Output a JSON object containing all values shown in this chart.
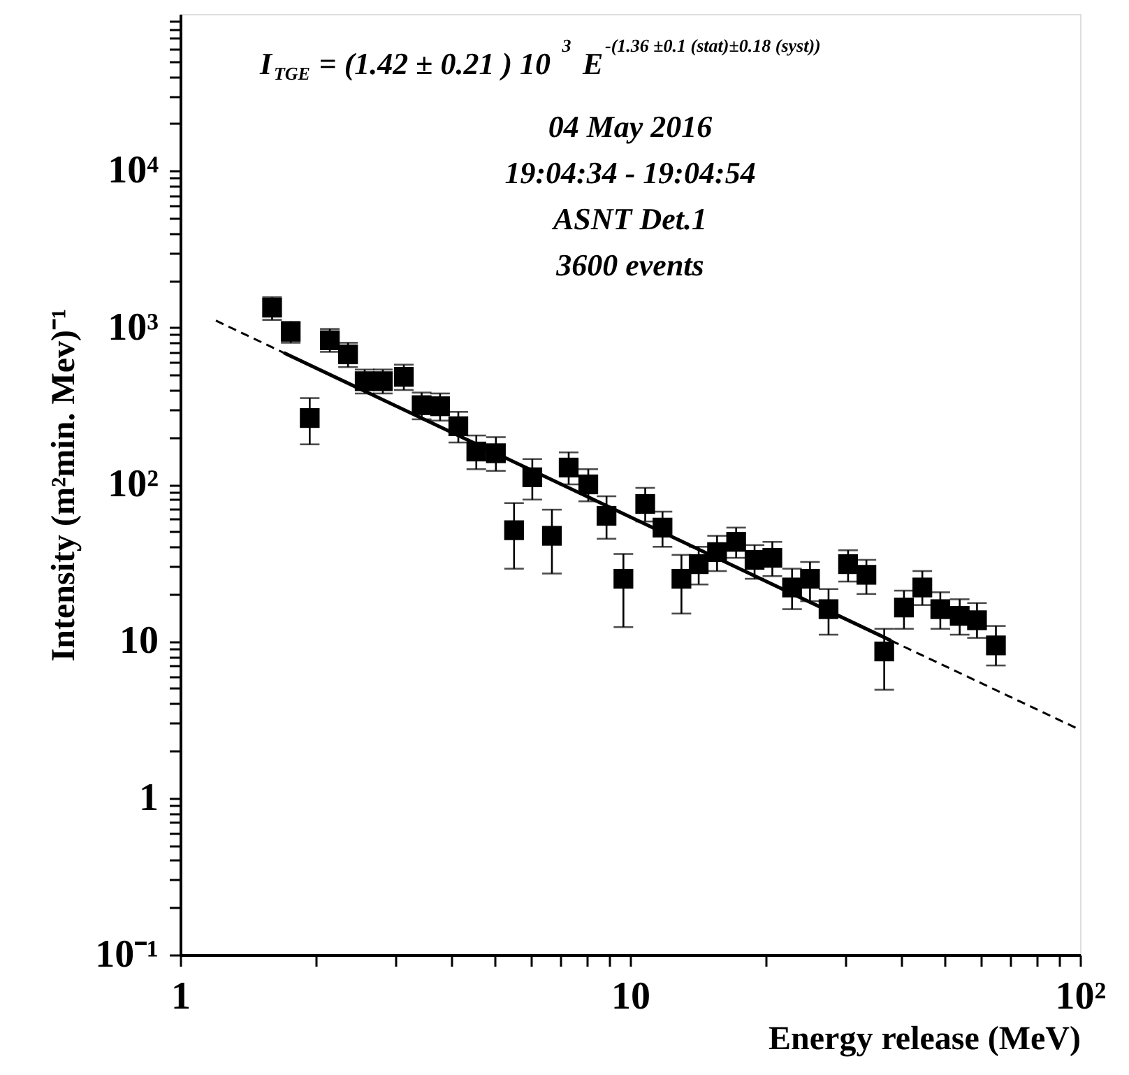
{
  "chart_data": {
    "type": "scatter",
    "xlabel": "Energy release (MeV)",
    "ylabel": "Intensity (m²min. Mev)⁻¹",
    "annotations": [
      "I$_{TGE}$ = (1.42 ± 0.21 ) 10$^{3}$ E$^{-(1.36 ±0.1 (stat)±0.18 (syst))}$",
      "04 May  2016",
      "19:04:34 - 19:04:54",
      "ASNT  Det.1",
      "3600 events"
    ],
    "log": "xy",
    "xlim": [
      1,
      100
    ],
    "ylim": [
      0.1,
      100000
    ],
    "xticks": [
      1,
      {
        "value": 2,
        "label": null
      },
      {
        "value": 3,
        "label": null
      },
      {
        "value": 4,
        "label": null
      },
      {
        "value": 5,
        "label": null
      },
      {
        "value": 6,
        "label": null
      },
      {
        "value": 7,
        "label": null
      },
      {
        "value": 8,
        "label": null
      },
      {
        "value": 9,
        "label": null
      },
      10,
      {
        "value": 20,
        "label": null
      },
      {
        "value": 30,
        "label": null
      },
      {
        "value": 40,
        "label": null
      },
      {
        "value": 50,
        "label": null
      },
      {
        "value": 60,
        "label": null
      },
      {
        "value": 70,
        "label": null
      },
      {
        "value": 80,
        "label": null
      },
      {
        "value": 90,
        "label": null
      },
      {
        "value": 100,
        "label": "10²"
      }
    ],
    "yticks": [
      {
        "value": 0.1,
        "label": "10⁻¹"
      },
      {
        "value": 0.2,
        "label": null
      },
      {
        "value": 0.3,
        "label": null
      },
      {
        "value": 0.4,
        "label": null
      },
      {
        "value": 0.5,
        "label": null
      },
      {
        "value": 0.6,
        "label": null
      },
      {
        "value": 0.7,
        "label": null
      },
      {
        "value": 0.8,
        "label": null
      },
      {
        "value": 0.9,
        "label": null
      },
      1,
      {
        "value": 2,
        "label": null
      },
      {
        "value": 3,
        "label": null
      },
      {
        "value": 4,
        "label": null
      },
      {
        "value": 5,
        "label": null
      },
      {
        "value": 6,
        "label": null
      },
      {
        "value": 7,
        "label": null
      },
      {
        "value": 8,
        "label": null
      },
      {
        "value": 9,
        "label": null
      },
      10,
      {
        "value": 20,
        "label": null
      },
      {
        "value": 30,
        "label": null
      },
      {
        "value": 40,
        "label": null
      },
      {
        "value": 50,
        "label": null
      },
      {
        "value": 60,
        "label": null
      },
      {
        "value": 70,
        "label": null
      },
      {
        "value": 80,
        "label": null
      },
      {
        "value": 90,
        "label": null
      },
      {
        "value": 100,
        "label": "10²"
      },
      {
        "value": 200,
        "label": null
      },
      {
        "value": 300,
        "label": null
      },
      {
        "value": 400,
        "label": null
      },
      {
        "value": 500,
        "label": null
      },
      {
        "value": 600,
        "label": null
      },
      {
        "value": 700,
        "label": null
      },
      {
        "value": 800,
        "label": null
      },
      {
        "value": 900,
        "label": null
      },
      {
        "value": 1000,
        "label": "10³"
      },
      {
        "value": 2000,
        "label": null
      },
      {
        "value": 3000,
        "label": null
      },
      {
        "value": 4000,
        "label": null
      },
      {
        "value": 5000,
        "label": null
      },
      {
        "value": 6000,
        "label": null
      },
      {
        "value": 7000,
        "label": null
      },
      {
        "value": 8000,
        "label": null
      },
      {
        "value": 9000,
        "label": null
      },
      {
        "value": 10000,
        "label": "10⁴"
      },
      {
        "value": 20000,
        "label": null
      },
      {
        "value": 30000,
        "label": null
      },
      {
        "value": 40000,
        "label": null
      },
      {
        "value": 50000,
        "label": null
      },
      {
        "value": 60000,
        "label": null
      },
      {
        "value": 70000,
        "label": null
      },
      {
        "value": 80000,
        "label": null
      },
      {
        "value": 90000,
        "label": null
      }
    ],
    "grid": false,
    "series": [
      {
        "color": "#000000",
        "marker": "square",
        "x": [
          1.6,
          1.76,
          1.94,
          2.15,
          2.36,
          2.57,
          2.82,
          3.14,
          3.44,
          3.78,
          4.15,
          4.55,
          5.03,
          5.52,
          6.06,
          6.7,
          7.3,
          8.07,
          8.86,
          9.66,
          10.8,
          11.8,
          13.0,
          14.2,
          15.6,
          17.2,
          18.9,
          20.7,
          22.9,
          25.1,
          27.6,
          30.5,
          33.5,
          36.7,
          40.6,
          44.6,
          48.9,
          54,
          59,
          65
        ],
        "values": [
          1340,
          940,
          265,
          830,
          675,
          455,
          455,
          485,
          320,
          315,
          235,
          162,
          158,
          51,
          111,
          47,
          128,
          100,
          63,
          25,
          75,
          53,
          25,
          31,
          37,
          43,
          33,
          34,
          22,
          25,
          16,
          31,
          26.5,
          8.6,
          16.4,
          22,
          16,
          14.5,
          13.6,
          9.4
        ],
        "errors": [
          [
            1120,
            1560
          ],
          [
            800,
            1090
          ],
          [
            180,
            355
          ],
          [
            700,
            980
          ],
          [
            560,
            800
          ],
          [
            380,
            540
          ],
          [
            380,
            540
          ],
          [
            400,
            580
          ],
          [
            260,
            385
          ],
          [
            255,
            380
          ],
          [
            185,
            290
          ],
          [
            125,
            205
          ],
          [
            122,
            200
          ],
          [
            29,
            76
          ],
          [
            80,
            145
          ],
          [
            27,
            69
          ],
          [
            100,
            160
          ],
          [
            78,
            125
          ],
          [
            45,
            84
          ],
          [
            12.3,
            36
          ],
          [
            58,
            95
          ],
          [
            40,
            67
          ],
          [
            15,
            35.5
          ],
          [
            23,
            40
          ],
          [
            28,
            47
          ],
          [
            34,
            53
          ],
          [
            25,
            41
          ],
          [
            26,
            43
          ],
          [
            16,
            29
          ],
          [
            18,
            32
          ],
          [
            11,
            21.5
          ],
          [
            24,
            38
          ],
          [
            20,
            33
          ],
          [
            4.9,
            12
          ],
          [
            12,
            21
          ],
          [
            17,
            28
          ],
          [
            12,
            20.5
          ],
          [
            11,
            18.5
          ],
          [
            10.5,
            17.5
          ],
          [
            7,
            12.5
          ]
        ]
      },
      {
        "type": "line",
        "color": "#000000",
        "line_style": "dashed",
        "x": [
          1.2,
          1.7
        ],
        "values": [
          1108,
          690
        ]
      },
      {
        "type": "line",
        "color": "#000000",
        "line_style": "solid",
        "x": [
          1.7,
          38
        ],
        "values": [
          690,
          10.09
        ]
      },
      {
        "type": "line",
        "color": "#000000",
        "line_style": "dashed",
        "x": [
          38,
          100
        ],
        "values": [
          10.09,
          2.72
        ]
      }
    ]
  }
}
